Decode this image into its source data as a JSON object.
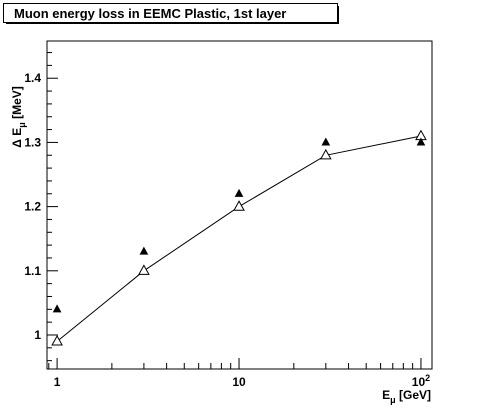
{
  "chart_data": {
    "type": "scatter",
    "title": "Muon energy loss in EEMC Plastic, 1st layer",
    "ylabel": "Δ E_μ [MeV]",
    "xlabel": "E_μ [GeV]",
    "xscale": "log",
    "xlim": [
      0.88,
      115
    ],
    "ylim": [
      0.947,
      1.458
    ],
    "grid": false,
    "x_ticks": [
      {
        "value": 1,
        "label": "1"
      },
      {
        "value": 10,
        "label": "10"
      },
      {
        "value": 100,
        "label": "10",
        "exponent": "2"
      }
    ],
    "y_ticks": [
      {
        "value": 1.0,
        "label": "1"
      },
      {
        "value": 1.1,
        "label": "1.1"
      },
      {
        "value": 1.2,
        "label": "1.2"
      },
      {
        "value": 1.3,
        "label": "1.3"
      },
      {
        "value": 1.4,
        "label": "1.4"
      }
    ],
    "series": [
      {
        "marker": "open-triangle",
        "line": true,
        "points": [
          {
            "x": 1,
            "y": 0.99
          },
          {
            "x": 3,
            "y": 1.1
          },
          {
            "x": 10,
            "y": 1.2
          },
          {
            "x": 30,
            "y": 1.28
          },
          {
            "x": 100,
            "y": 1.31
          }
        ]
      },
      {
        "marker": "filled-triangle",
        "line": false,
        "points": [
          {
            "x": 1,
            "y": 1.04
          },
          {
            "x": 3,
            "y": 1.13
          },
          {
            "x": 10,
            "y": 1.22
          },
          {
            "x": 30,
            "y": 1.3
          },
          {
            "x": 100,
            "y": 1.3
          }
        ]
      }
    ]
  }
}
